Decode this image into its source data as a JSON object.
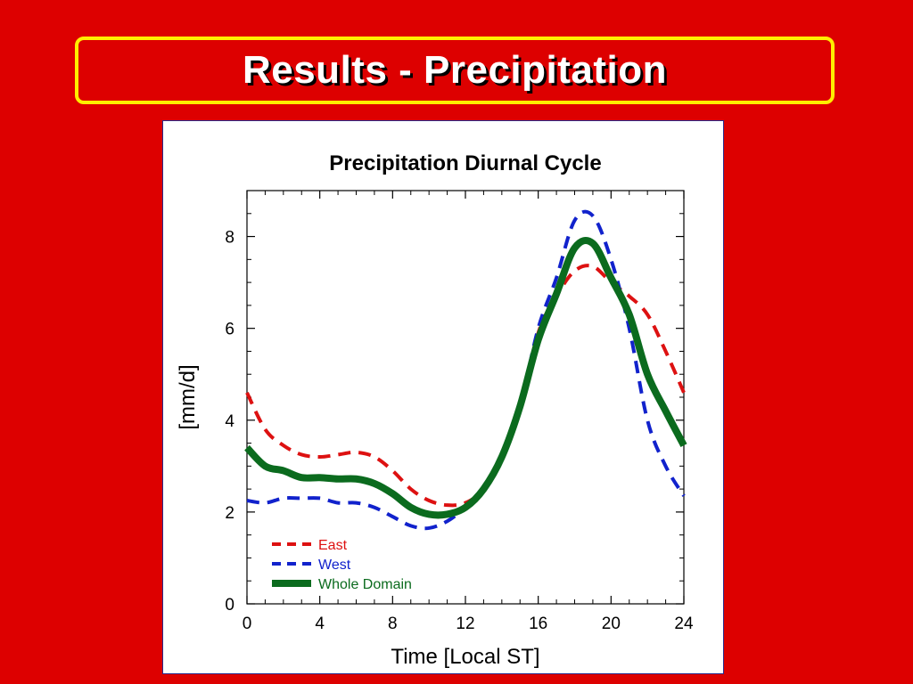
{
  "slide": {
    "title": "Results - Precipitation",
    "background_color": "#dd0000",
    "title_border_color": "#ffee00"
  },
  "chart_data": {
    "type": "line",
    "title": "Precipitation Diurnal Cycle",
    "xlabel": "Time [Local ST]",
    "ylabel": "[mm/d]",
    "xlim": [
      0,
      24
    ],
    "ylim": [
      0,
      9
    ],
    "xticks": [
      0,
      4,
      8,
      12,
      16,
      20,
      24
    ],
    "yticks": [
      0,
      2,
      4,
      6,
      8
    ],
    "grid": false,
    "legend_position": "bottom-left",
    "series": [
      {
        "name": "East",
        "color": "#dd1111",
        "style": "dashed",
        "x": [
          0,
          1,
          2,
          3,
          4,
          5,
          6,
          7,
          8,
          9,
          10,
          11,
          12,
          13,
          14,
          15,
          16,
          17,
          18,
          19,
          20,
          21,
          22,
          23,
          24
        ],
        "values": [
          4.6,
          3.8,
          3.45,
          3.25,
          3.2,
          3.25,
          3.3,
          3.2,
          2.9,
          2.5,
          2.25,
          2.15,
          2.2,
          2.5,
          3.2,
          4.3,
          5.9,
          6.7,
          7.25,
          7.35,
          7.0,
          6.7,
          6.3,
          5.5,
          4.6
        ]
      },
      {
        "name": "West",
        "color": "#1122cc",
        "style": "dashed",
        "x": [
          0,
          1,
          2,
          3,
          4,
          5,
          6,
          7,
          8,
          9,
          10,
          11,
          12,
          13,
          14,
          15,
          16,
          17,
          18,
          19,
          20,
          21,
          22,
          23,
          24
        ],
        "values": [
          2.25,
          2.2,
          2.3,
          2.3,
          2.3,
          2.2,
          2.2,
          2.1,
          1.9,
          1.7,
          1.65,
          1.8,
          2.1,
          2.5,
          3.2,
          4.3,
          6.0,
          7.1,
          8.35,
          8.45,
          7.5,
          6.0,
          4.0,
          3.0,
          2.35
        ]
      },
      {
        "name": "Whole Domain",
        "color": "#0b6b1e",
        "style": "solid",
        "x": [
          0,
          1,
          2,
          3,
          4,
          5,
          6,
          7,
          8,
          9,
          10,
          11,
          12,
          13,
          14,
          15,
          16,
          17,
          18,
          19,
          20,
          21,
          22,
          23,
          24
        ],
        "values": [
          3.4,
          3.0,
          2.9,
          2.75,
          2.75,
          2.72,
          2.72,
          2.62,
          2.4,
          2.1,
          1.95,
          1.95,
          2.1,
          2.5,
          3.2,
          4.3,
          5.75,
          6.75,
          7.75,
          7.85,
          7.1,
          6.3,
          5.0,
          4.2,
          3.45
        ]
      }
    ]
  }
}
